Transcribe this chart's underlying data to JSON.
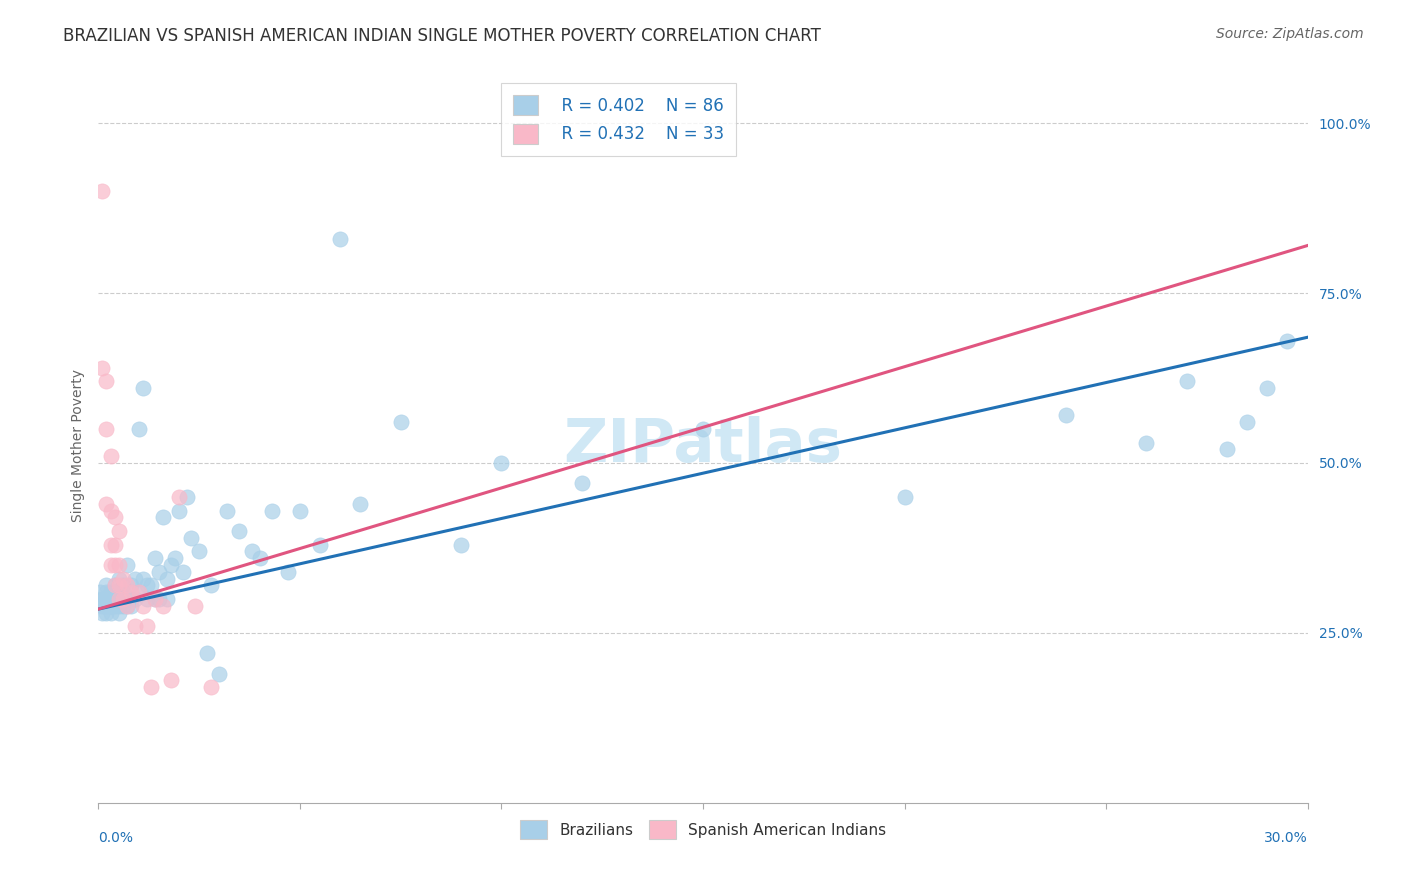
{
  "title": "BRAZILIAN VS SPANISH AMERICAN INDIAN SINGLE MOTHER POVERTY CORRELATION CHART",
  "source": "Source: ZipAtlas.com",
  "ylabel": "Single Mother Poverty",
  "ytick_labels": [
    "25.0%",
    "50.0%",
    "75.0%",
    "100.0%"
  ],
  "ytick_values": [
    0.25,
    0.5,
    0.75,
    1.0
  ],
  "xlim": [
    0.0,
    0.3
  ],
  "ylim": [
    0.0,
    1.05
  ],
  "blue_color": "#a8cfe8",
  "pink_color": "#f9b8c8",
  "blue_line_color": "#2171b5",
  "pink_line_color": "#e05580",
  "watermark": "ZIPatlas",
  "legend_R1": "R = 0.402",
  "legend_N1": "N = 86",
  "legend_R2": "R = 0.432",
  "legend_N2": "N = 33",
  "blue_scatter_x": [
    0.0005,
    0.001,
    0.001,
    0.001,
    0.001,
    0.002,
    0.002,
    0.002,
    0.002,
    0.002,
    0.003,
    0.003,
    0.003,
    0.003,
    0.003,
    0.003,
    0.004,
    0.004,
    0.004,
    0.004,
    0.004,
    0.005,
    0.005,
    0.005,
    0.005,
    0.005,
    0.005,
    0.006,
    0.006,
    0.006,
    0.006,
    0.007,
    0.007,
    0.007,
    0.008,
    0.008,
    0.008,
    0.009,
    0.009,
    0.01,
    0.01,
    0.011,
    0.011,
    0.012,
    0.012,
    0.013,
    0.014,
    0.014,
    0.015,
    0.015,
    0.016,
    0.017,
    0.017,
    0.018,
    0.019,
    0.02,
    0.021,
    0.022,
    0.023,
    0.025,
    0.027,
    0.028,
    0.03,
    0.032,
    0.035,
    0.038,
    0.04,
    0.043,
    0.047,
    0.05,
    0.055,
    0.06,
    0.065,
    0.075,
    0.09,
    0.1,
    0.12,
    0.15,
    0.2,
    0.24,
    0.26,
    0.27,
    0.28,
    0.285,
    0.29,
    0.295
  ],
  "blue_scatter_y": [
    0.31,
    0.3,
    0.29,
    0.28,
    0.3,
    0.31,
    0.29,
    0.28,
    0.3,
    0.32,
    0.3,
    0.29,
    0.28,
    0.31,
    0.3,
    0.29,
    0.32,
    0.3,
    0.29,
    0.31,
    0.3,
    0.33,
    0.3,
    0.29,
    0.28,
    0.31,
    0.3,
    0.32,
    0.29,
    0.31,
    0.3,
    0.35,
    0.3,
    0.29,
    0.32,
    0.3,
    0.29,
    0.33,
    0.3,
    0.55,
    0.31,
    0.33,
    0.61,
    0.3,
    0.32,
    0.32,
    0.3,
    0.36,
    0.3,
    0.34,
    0.42,
    0.33,
    0.3,
    0.35,
    0.36,
    0.43,
    0.34,
    0.45,
    0.39,
    0.37,
    0.22,
    0.32,
    0.19,
    0.43,
    0.4,
    0.37,
    0.36,
    0.43,
    0.34,
    0.43,
    0.38,
    0.83,
    0.44,
    0.56,
    0.38,
    0.5,
    0.47,
    0.55,
    0.45,
    0.57,
    0.53,
    0.62,
    0.52,
    0.56,
    0.61,
    0.68
  ],
  "pink_scatter_x": [
    0.001,
    0.001,
    0.002,
    0.002,
    0.002,
    0.003,
    0.003,
    0.003,
    0.003,
    0.004,
    0.004,
    0.004,
    0.004,
    0.005,
    0.005,
    0.005,
    0.005,
    0.006,
    0.006,
    0.007,
    0.007,
    0.008,
    0.009,
    0.01,
    0.011,
    0.012,
    0.013,
    0.014,
    0.016,
    0.018,
    0.02,
    0.024,
    0.028
  ],
  "pink_scatter_y": [
    0.9,
    0.64,
    0.62,
    0.55,
    0.44,
    0.51,
    0.43,
    0.38,
    0.35,
    0.42,
    0.38,
    0.35,
    0.32,
    0.4,
    0.35,
    0.32,
    0.3,
    0.33,
    0.3,
    0.32,
    0.29,
    0.31,
    0.26,
    0.31,
    0.29,
    0.26,
    0.17,
    0.3,
    0.29,
    0.18,
    0.45,
    0.29,
    0.17
  ],
  "blue_trend_x": [
    0.0,
    0.3
  ],
  "blue_trend_y": [
    0.285,
    0.685
  ],
  "pink_trend_x": [
    0.0,
    0.3
  ],
  "pink_trend_y": [
    0.285,
    0.82
  ],
  "background_color": "#ffffff",
  "grid_color": "#cccccc",
  "title_fontsize": 12,
  "source_fontsize": 10,
  "watermark_fontsize": 44,
  "watermark_color": "#d0e8f5",
  "legend_text_color": "#2171b5",
  "axis_label_color": "#2171b5"
}
